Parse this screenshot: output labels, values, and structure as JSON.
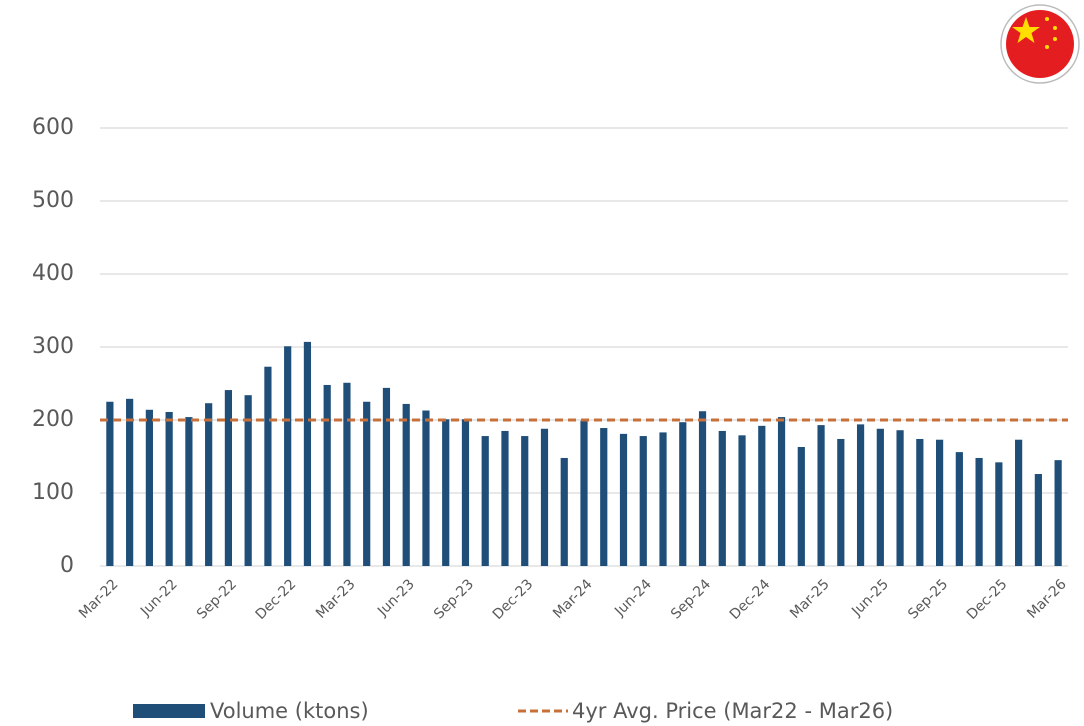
{
  "chart_data": {
    "type": "bar",
    "categories": [
      "Mar-22",
      null,
      null,
      "Jun-22",
      null,
      null,
      "Sep-22",
      null,
      null,
      "Dec-22",
      null,
      null,
      "Mar-23",
      null,
      null,
      "Jun-23",
      null,
      null,
      "Sep-23",
      null,
      null,
      "Dec-23",
      null,
      null,
      "Mar-24",
      null,
      null,
      "Jun-24",
      null,
      null,
      "Sep-24",
      null,
      null,
      "Dec-24",
      null,
      null,
      "Mar-25",
      null,
      null,
      "Jun-25",
      null,
      null,
      "Sep-25",
      null,
      null,
      "Dec-25",
      null,
      null,
      "Mar-26"
    ],
    "series": [
      {
        "name": "Volume (ktons)",
        "color": "#1f4e79",
        "values": [
          225,
          229,
          214,
          211,
          204,
          223,
          241,
          234,
          273,
          301,
          307,
          248,
          251,
          225,
          244,
          222,
          213,
          201,
          201,
          178,
          185,
          178,
          188,
          148,
          199,
          189,
          181,
          178,
          183,
          197,
          212,
          185,
          179,
          192,
          204,
          163,
          193,
          174,
          194,
          188,
          186,
          174,
          173,
          156,
          148,
          142,
          173,
          126,
          145
        ]
      }
    ],
    "reference_line": {
      "name": "4yr Avg. Price (Mar22 - Mar26)",
      "value": 200,
      "color": "#c8703a"
    },
    "ylim": [
      0,
      600
    ],
    "yticks": [
      0,
      100,
      200,
      300,
      400,
      500,
      600
    ],
    "grid": true
  }
}
